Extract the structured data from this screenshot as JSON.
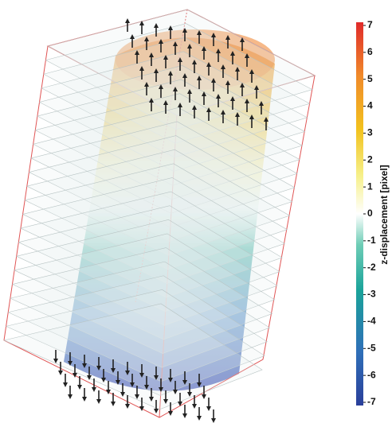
{
  "chart_data": {
    "type": "volume",
    "colorbar_label": "z-displacement [pixel]",
    "ylim": [
      -7,
      7
    ],
    "yticks": [
      7,
      6,
      5,
      4,
      3,
      2,
      1,
      0,
      -1,
      -2,
      -3,
      -4,
      -5,
      -6,
      -7
    ]
  }
}
